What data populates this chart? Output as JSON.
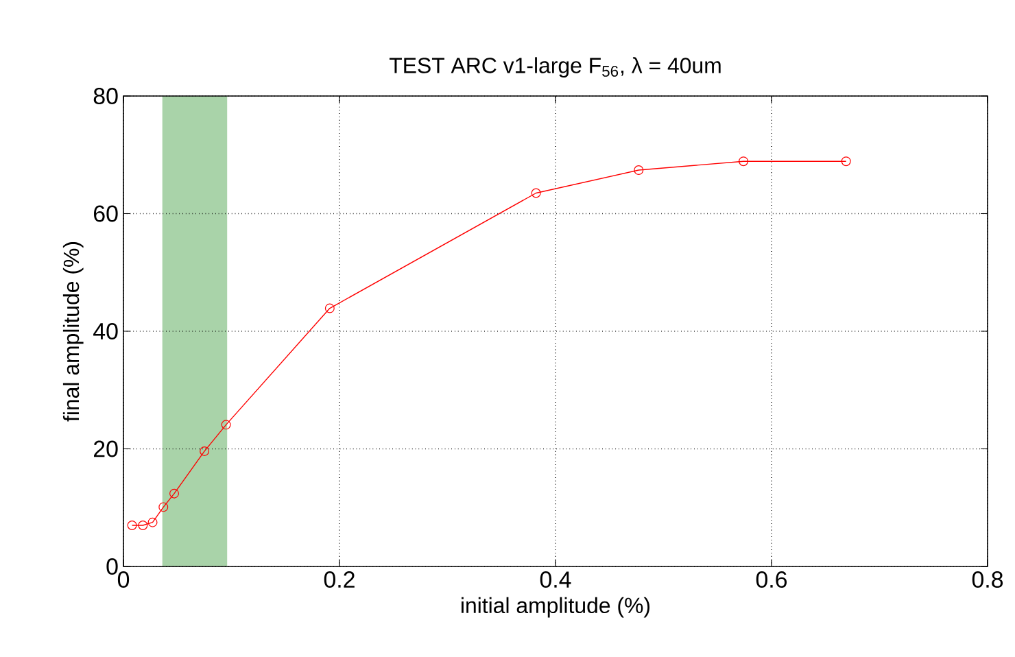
{
  "chart_data": {
    "type": "line",
    "title": "TEST ARC v1-large F$_{56}$, λ = 40um",
    "xlabel": "initial amplitude (%)",
    "ylabel": "final amplitude (%)",
    "x": [
      0.008,
      0.018,
      0.027,
      0.037,
      0.047,
      0.075,
      0.095,
      0.191,
      0.382,
      0.477,
      0.574,
      0.669
    ],
    "series": [
      {
        "color": "#ff0000",
        "values": [
          7.0,
          7.0,
          7.5,
          10.1,
          12.4,
          19.6,
          24.1,
          43.9,
          63.5,
          67.4,
          68.9,
          68.9
        ]
      }
    ],
    "xlim": [
      0,
      0.8
    ],
    "ylim": [
      0,
      80
    ],
    "xticks": [
      0,
      0.2,
      0.4,
      0.6,
      0.8
    ],
    "yticks": [
      0,
      20,
      40,
      60,
      80
    ],
    "bands": [
      {
        "axis": "x",
        "from": 0.036,
        "to": 0.096,
        "color": "#a9d3a9"
      }
    ],
    "grid": true,
    "marker": "circle",
    "line_style": "solid"
  }
}
